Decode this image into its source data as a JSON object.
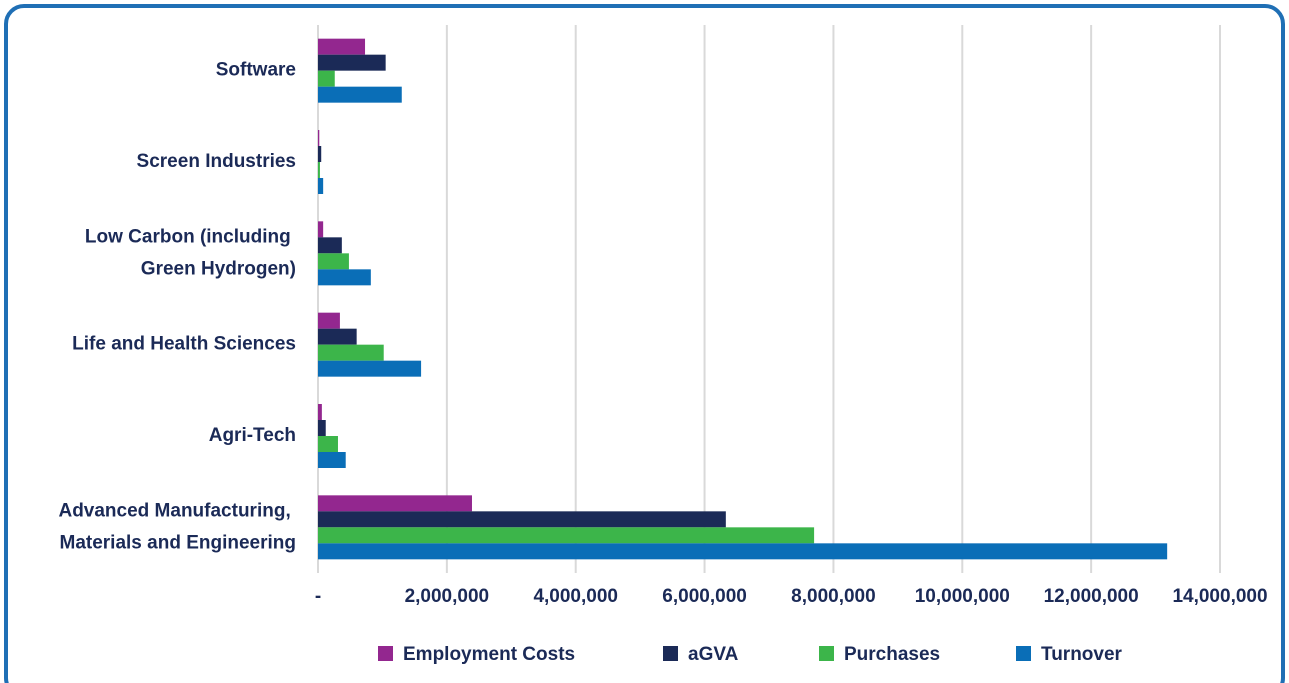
{
  "chart_data": {
    "type": "hbar",
    "categories": [
      "Software",
      "Screen Industries",
      "Low Carbon (including Green Hydrogen)",
      "Life and Health Sciences",
      "Agri-Tech",
      "Advanced Manufacturing, Materials and Engineering"
    ],
    "series": [
      {
        "name": "Employment Costs",
        "color": "#93278f",
        "values": [
          730000,
          20000,
          80000,
          340000,
          60000,
          2390000
        ]
      },
      {
        "name": "aGVA",
        "color": "#1b2a57",
        "values": [
          1050000,
          50000,
          370000,
          600000,
          120000,
          6330000
        ]
      },
      {
        "name": "Purchases",
        "color": "#3cb54a",
        "values": [
          260000,
          30000,
          480000,
          1020000,
          310000,
          7700000
        ]
      },
      {
        "name": "Turnover",
        "color": "#0a6eb7",
        "values": [
          1300000,
          80000,
          820000,
          1600000,
          430000,
          13180000
        ]
      }
    ],
    "xlim": [
      0,
      14000000
    ],
    "xticks": [
      {
        "value": 0,
        "label": "-"
      },
      {
        "value": 2000000,
        "label": "2,000,000"
      },
      {
        "value": 4000000,
        "label": "4,000,000"
      },
      {
        "value": 6000000,
        "label": "6,000,000"
      },
      {
        "value": 8000000,
        "label": "8,000,000"
      },
      {
        "value": 10000000,
        "label": "10,000,000"
      },
      {
        "value": 12000000,
        "label": "12,000,000"
      },
      {
        "value": 14000000,
        "label": "14,000,000"
      }
    ],
    "grid": true
  }
}
